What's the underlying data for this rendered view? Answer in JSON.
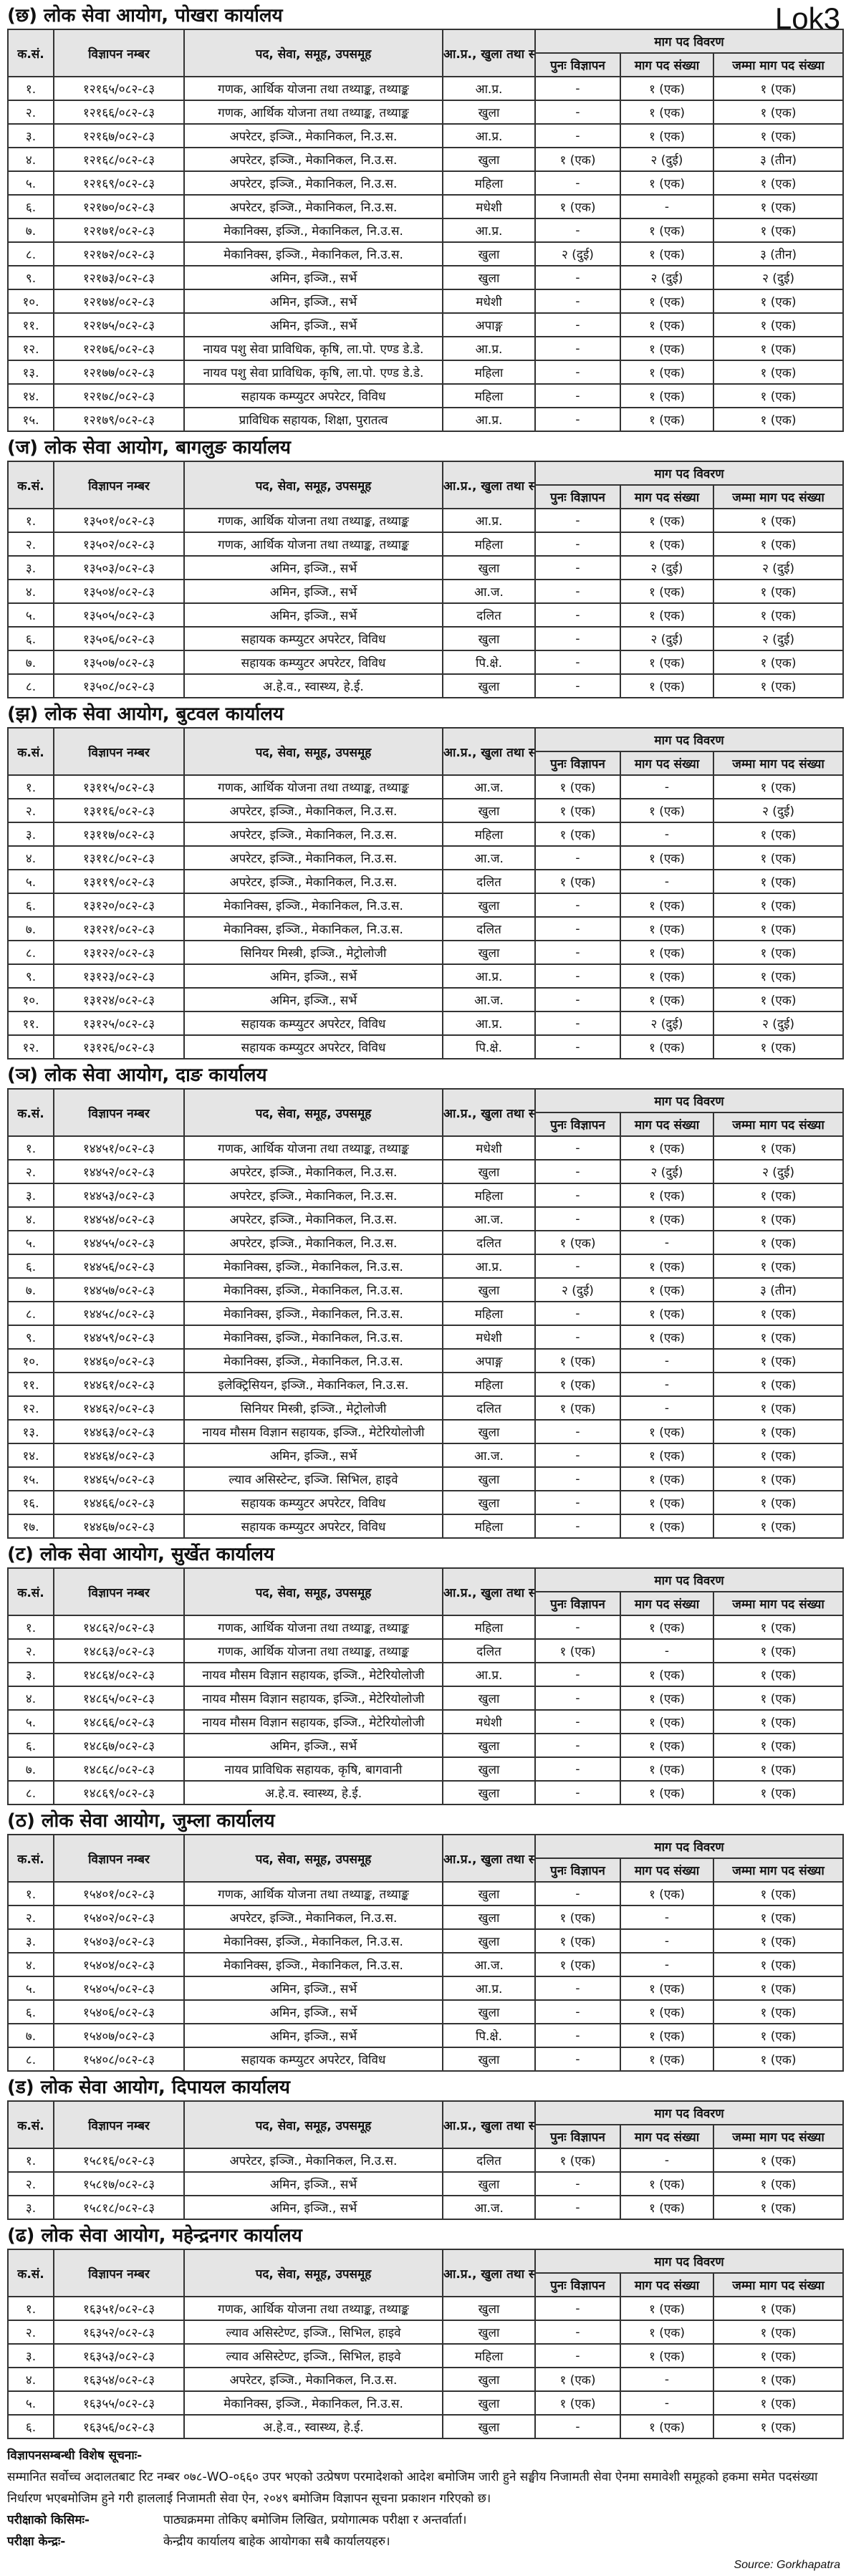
{
  "tag": "Lok3",
  "headers": {
    "sn": "क.सं.",
    "adv": "विज्ञापन नम्बर",
    "post": "पद, सेवा, समूह, उपसमूह",
    "group": "आ.प्र., खुला तथा समावेशी",
    "demand": "माग पद विवरण",
    "readv": "पुनः विज्ञापन",
    "count": "माग पद संख्या",
    "total": "जम्मा माग पद संख्या"
  },
  "sections": [
    {
      "title": "(छ) लोक सेवा आयोग, पोखरा कार्यालय",
      "rows": [
        [
          "१.",
          "१२१६५/०८२-८३",
          "गणक, आर्थिक योजना तथा तथ्याङ्क, तथ्याङ्क",
          "आ.प्र.",
          "-",
          "१ (एक)",
          "१ (एक)"
        ],
        [
          "२.",
          "१२१६६/०८२-८३",
          "गणक, आर्थिक योजना तथा तथ्याङ्क, तथ्याङ्क",
          "खुला",
          "-",
          "१ (एक)",
          "१ (एक)"
        ],
        [
          "३.",
          "१२१६७/०८२-८३",
          "अपरेटर, इञ्जि., मेकानिकल, नि.उ.स.",
          "आ.प्र.",
          "-",
          "१ (एक)",
          "१ (एक)"
        ],
        [
          "४.",
          "१२१६८/०८२-८३",
          "अपरेटर, इञ्जि., मेकानिकल, नि.उ.स.",
          "खुला",
          "१ (एक)",
          "२ (दुई)",
          "३ (तीन)"
        ],
        [
          "५.",
          "१२१६९/०८२-८३",
          "अपरेटर, इञ्जि., मेकानिकल, नि.उ.स.",
          "महिला",
          "-",
          "१ (एक)",
          "१ (एक)"
        ],
        [
          "६.",
          "१२१७०/०८२-८३",
          "अपरेटर, इञ्जि., मेकानिकल, नि.उ.स.",
          "मधेशी",
          "१ (एक)",
          "-",
          "१ (एक)"
        ],
        [
          "७.",
          "१२१७१/०८२-८३",
          "मेकानिक्स, इञ्जि., मेकानिकल, नि.उ.स.",
          "आ.प्र.",
          "-",
          "१ (एक)",
          "१ (एक)"
        ],
        [
          "८.",
          "१२१७२/०८२-८३",
          "मेकानिक्स, इञ्जि., मेकानिकल, नि.उ.स.",
          "खुला",
          "२ (दुई)",
          "१ (एक)",
          "३ (तीन)"
        ],
        [
          "९.",
          "१२१७३/०८२-८३",
          "अमिन, इञ्जि., सर्भे",
          "खुला",
          "-",
          "२ (दुई)",
          "२ (दुई)"
        ],
        [
          "१०.",
          "१२१७४/०८२-८३",
          "अमिन, इञ्जि., सर्भे",
          "मधेशी",
          "-",
          "१ (एक)",
          "१ (एक)"
        ],
        [
          "११.",
          "१२१७५/०८२-८३",
          "अमिन, इञ्जि., सर्भे",
          "अपाङ्ग",
          "-",
          "१ (एक)",
          "१ (एक)"
        ],
        [
          "१२.",
          "१२१७६/०८२-८३",
          "नायव पशु सेवा प्राविधिक, कृषि, ला.पो. एण्ड डे.डे.",
          "आ.प्र.",
          "-",
          "१ (एक)",
          "१ (एक)"
        ],
        [
          "१३.",
          "१२१७७/०८२-८३",
          "नायव पशु सेवा प्राविधिक, कृषि, ला.पो. एण्ड डे.डे.",
          "महिला",
          "-",
          "१ (एक)",
          "१ (एक)"
        ],
        [
          "१४.",
          "१२१७८/०८२-८३",
          "सहायक कम्प्युटर अपरेटर, विविध",
          "महिला",
          "-",
          "१ (एक)",
          "१ (एक)"
        ],
        [
          "१५.",
          "१२१७९/०८२-८३",
          "प्राविधिक सहायक, शिक्षा, पुरातत्व",
          "आ.प्र.",
          "-",
          "१ (एक)",
          "१ (एक)"
        ]
      ]
    },
    {
      "title": "(ज) लोक सेवा आयोग, बागलुङ कार्यालय",
      "rows": [
        [
          "१.",
          "१३५०१/०८२-८३",
          "गणक, आर्थिक योजना तथा तथ्याङ्क, तथ्याङ्क",
          "आ.प्र.",
          "-",
          "१ (एक)",
          "१ (एक)"
        ],
        [
          "२.",
          "१३५०२/०८२-८३",
          "गणक, आर्थिक योजना तथा तथ्याङ्क, तथ्याङ्क",
          "महिला",
          "-",
          "१ (एक)",
          "१ (एक)"
        ],
        [
          "३.",
          "१३५०३/०८२-८३",
          "अमिन, इञ्जि., सर्भे",
          "खुला",
          "-",
          "२ (दुई)",
          "२ (दुई)"
        ],
        [
          "४.",
          "१३५०४/०८२-८३",
          "अमिन, इञ्जि., सर्भे",
          "आ.ज.",
          "-",
          "१ (एक)",
          "१ (एक)"
        ],
        [
          "५.",
          "१३५०५/०८२-८३",
          "अमिन, इञ्जि., सर्भे",
          "दलित",
          "-",
          "१ (एक)",
          "१ (एक)"
        ],
        [
          "६.",
          "१३५०६/०८२-८३",
          "सहायक कम्प्युटर अपरेटर, विविध",
          "खुला",
          "-",
          "२ (दुई)",
          "२ (दुई)"
        ],
        [
          "७.",
          "१३५०७/०८२-८३",
          "सहायक कम्प्युटर अपरेटर, विविध",
          "पि.क्षे.",
          "-",
          "१ (एक)",
          "१ (एक)"
        ],
        [
          "८.",
          "१३५०८/०८२-८३",
          "अ.हे.व., स्वास्थ्य, हे.ई.",
          "खुला",
          "-",
          "१ (एक)",
          "१ (एक)"
        ]
      ]
    },
    {
      "title": "(झ) लोक सेवा आयोग, बुटवल कार्यालय",
      "rows": [
        [
          "१.",
          "१३११५/०८२-८३",
          "गणक, आर्थिक योजना तथा तथ्याङ्क, तथ्याङ्क",
          "आ.ज.",
          "१ (एक)",
          "-",
          "१ (एक)"
        ],
        [
          "२.",
          "१३११६/०८२-८३",
          "अपरेटर, इञ्जि., मेकानिकल, नि.उ.स.",
          "खुला",
          "१ (एक)",
          "१ (एक)",
          "२ (दुई)"
        ],
        [
          "३.",
          "१३११७/०८२-८३",
          "अपरेटर, इञ्जि., मेकानिकल, नि.उ.स.",
          "महिला",
          "१ (एक)",
          "-",
          "१ (एक)"
        ],
        [
          "४.",
          "१३११८/०८२-८३",
          "अपरेटर, इञ्जि., मेकानिकल, नि.उ.स.",
          "आ.ज.",
          "-",
          "१ (एक)",
          "१ (एक)"
        ],
        [
          "५.",
          "१३११९/०८२-८३",
          "अपरेटर, इञ्जि., मेकानिकल, नि.उ.स.",
          "दलित",
          "१ (एक)",
          "-",
          "१ (एक)"
        ],
        [
          "६.",
          "१३१२०/०८२-८३",
          "मेकानिक्स, इञ्जि., मेकानिकल, नि.उ.स.",
          "खुला",
          "-",
          "१ (एक)",
          "१ (एक)"
        ],
        [
          "७.",
          "१३१२१/०८२-८३",
          "मेकानिक्स, इञ्जि., मेकानिकल, नि.उ.स.",
          "दलित",
          "-",
          "१ (एक)",
          "१ (एक)"
        ],
        [
          "८.",
          "१३१२२/०८२-८३",
          "सिनियर मिस्त्री, इञ्जि., मेट्रोलोजी",
          "खुला",
          "-",
          "१ (एक)",
          "१ (एक)"
        ],
        [
          "९.",
          "१३१२३/०८२-८३",
          "अमिन, इञ्जि., सर्भे",
          "आ.प्र.",
          "-",
          "१ (एक)",
          "१ (एक)"
        ],
        [
          "१०.",
          "१३१२४/०८२-८३",
          "अमिन, इञ्जि., सर्भे",
          "आ.ज.",
          "-",
          "१ (एक)",
          "१ (एक)"
        ],
        [
          "११.",
          "१३१२५/०८२-८३",
          "सहायक कम्प्युटर अपरेटर, विविध",
          "आ.प्र.",
          "-",
          "२ (दुई)",
          "२ (दुई)"
        ],
        [
          "१२.",
          "१३१२६/०८२-८३",
          "सहायक कम्प्युटर अपरेटर, विविध",
          "पि.क्षे.",
          "-",
          "१ (एक)",
          "१ (एक)"
        ]
      ]
    },
    {
      "title": "(ञ) लोक सेवा आयोग, दाङ कार्यालय",
      "rows": [
        [
          "१.",
          "१४४५१/०८२-८३",
          "गणक, आर्थिक योजना तथा तथ्याङ्क, तथ्याङ्क",
          "मधेशी",
          "-",
          "१ (एक)",
          "१ (एक)"
        ],
        [
          "२.",
          "१४४५२/०८२-८३",
          "अपरेटर, इञ्जि., मेकानिकल, नि.उ.स.",
          "खुला",
          "-",
          "२ (दुई)",
          "२ (दुई)"
        ],
        [
          "३.",
          "१४४५३/०८२-८३",
          "अपरेटर, इञ्जि., मेकानिकल, नि.उ.स.",
          "महिला",
          "-",
          "१ (एक)",
          "१ (एक)"
        ],
        [
          "४.",
          "१४४५४/०८२-८३",
          "अपरेटर, इञ्जि., मेकानिकल, नि.उ.स.",
          "आ.ज.",
          "-",
          "१ (एक)",
          "१ (एक)"
        ],
        [
          "५.",
          "१४४५५/०८२-८३",
          "अपरेटर, इञ्जि., मेकानिकल, नि.उ.स.",
          "दलित",
          "१ (एक)",
          "-",
          "१ (एक)"
        ],
        [
          "६.",
          "१४४५६/०८२-८३",
          "मेकानिक्स, इञ्जि., मेकानिकल, नि.उ.स.",
          "आ.प्र.",
          "-",
          "१ (एक)",
          "१ (एक)"
        ],
        [
          "७.",
          "१४४५७/०८२-८३",
          "मेकानिक्स, इञ्जि., मेकानिकल, नि.उ.स.",
          "खुला",
          "२ (दुई)",
          "१ (एक)",
          "३ (तीन)"
        ],
        [
          "८.",
          "१४४५८/०८२-८३",
          "मेकानिक्स, इञ्जि., मेकानिकल, नि.उ.स.",
          "महिला",
          "-",
          "१ (एक)",
          "१ (एक)"
        ],
        [
          "९.",
          "१४४५९/०८२-८३",
          "मेकानिक्स, इञ्जि., मेकानिकल, नि.उ.स.",
          "मधेशी",
          "-",
          "१ (एक)",
          "१ (एक)"
        ],
        [
          "१०.",
          "१४४६०/०८२-८३",
          "मेकानिक्स, इञ्जि., मेकानिकल, नि.उ.स.",
          "अपाङ्ग",
          "१ (एक)",
          "-",
          "१ (एक)"
        ],
        [
          "११.",
          "१४४६१/०८२-८३",
          "इलेक्ट्रिसियन, इञ्जि., मेकानिकल, नि.उ.स.",
          "महिला",
          "१ (एक)",
          "-",
          "१ (एक)"
        ],
        [
          "१२.",
          "१४४६२/०८२-८३",
          "सिनियर मिस्त्री, इञ्जि., मेट्रोलोजी",
          "दलित",
          "१ (एक)",
          "-",
          "१ (एक)"
        ],
        [
          "१३.",
          "१४४६३/०८२-८३",
          "नायव मौसम विज्ञान सहायक, इञ्जि., मेटेरियोलोजी",
          "खुला",
          "-",
          "१ (एक)",
          "१ (एक)"
        ],
        [
          "१४.",
          "१४४६४/०८२-८३",
          "अमिन, इञ्जि., सर्भे",
          "आ.ज.",
          "-",
          "१ (एक)",
          "१ (एक)"
        ],
        [
          "१५.",
          "१४४६५/०८२-८३",
          "ल्याव असिस्टेन्ट, इञ्जि. सिभिल, हाइवे",
          "खुला",
          "-",
          "१ (एक)",
          "१ (एक)"
        ],
        [
          "१६.",
          "१४४६६/०८२-८३",
          "सहायक कम्प्युटर अपरेटर, विविध",
          "खुला",
          "-",
          "१ (एक)",
          "१ (एक)"
        ],
        [
          "१७.",
          "१४४६७/०८२-८३",
          "सहायक कम्प्युटर अपरेटर, विविध",
          "महिला",
          "-",
          "१ (एक)",
          "१ (एक)"
        ]
      ]
    },
    {
      "title": "(ट) लोक सेवा आयोग, सुर्खेत कार्यालय",
      "rows": [
        [
          "१.",
          "१४८६२/०८२-८३",
          "गणक, आर्थिक योजना तथा तथ्याङ्क, तथ्याङ्क",
          "महिला",
          "-",
          "१ (एक)",
          "१ (एक)"
        ],
        [
          "२.",
          "१४८६३/०८२-८३",
          "गणक, आर्थिक योजना तथा तथ्याङ्क, तथ्याङ्क",
          "दलित",
          "१ (एक)",
          "-",
          "१ (एक)"
        ],
        [
          "३.",
          "१४८६४/०८२-८३",
          "नायव मौसम विज्ञान सहायक, इञ्जि., मेटेरियोलोजी",
          "आ.प्र.",
          "-",
          "१ (एक)",
          "१ (एक)"
        ],
        [
          "४.",
          "१४८६५/०८२-८३",
          "नायव मौसम विज्ञान सहायक, इञ्जि., मेटेरियोलोजी",
          "खुला",
          "-",
          "१ (एक)",
          "१ (एक)"
        ],
        [
          "५.",
          "१४८६६/०८२-८३",
          "नायव मौसम विज्ञान सहायक, इञ्जि., मेटेरियोलोजी",
          "मधेशी",
          "-",
          "१ (एक)",
          "१ (एक)"
        ],
        [
          "६.",
          "१४८६७/०८२-८३",
          "अमिन, इञ्जि., सर्भे",
          "खुला",
          "-",
          "१ (एक)",
          "१ (एक)"
        ],
        [
          "७.",
          "१४८६८/०८२-८३",
          "नायव प्राविधिक सहायक, कृषि, बागवानी",
          "खुला",
          "-",
          "१ (एक)",
          "१ (एक)"
        ],
        [
          "८.",
          "१४८६९/०८२-८३",
          "अ.हे.व. स्वास्थ्य, हे.ई.",
          "खुला",
          "-",
          "१ (एक)",
          "१ (एक)"
        ]
      ]
    },
    {
      "title": "(ठ) लोक सेवा आयोग, जुम्ला कार्यालय",
      "rows": [
        [
          "१.",
          "१५४०१/०८२-८३",
          "गणक, आर्थिक योजना तथा तथ्याङ्क, तथ्याङ्क",
          "खुला",
          "-",
          "१ (एक)",
          "१ (एक)"
        ],
        [
          "२.",
          "१५४०२/०८२-८३",
          "अपरेटर, इञ्जि., मेकानिकल, नि.उ.स.",
          "खुला",
          "१ (एक)",
          "-",
          "१ (एक)"
        ],
        [
          "३.",
          "१५४०३/०८२-८३",
          "मेकानिक्स, इञ्जि., मेकानिकल, नि.उ.स.",
          "खुला",
          "१ (एक)",
          "-",
          "१ (एक)"
        ],
        [
          "४.",
          "१५४०४/०८२-८३",
          "मेकानिक्स, इञ्जि., मेकानिकल, नि.उ.स.",
          "आ.ज.",
          "१ (एक)",
          "-",
          "१ (एक)"
        ],
        [
          "५.",
          "१५४०५/०८२-८३",
          "अमिन, इञ्जि., सर्भे",
          "आ.प्र.",
          "-",
          "१ (एक)",
          "१ (एक)"
        ],
        [
          "६.",
          "१५४०६/०८२-८३",
          "अमिन, इञ्जि., सर्भे",
          "खुला",
          "-",
          "१ (एक)",
          "१ (एक)"
        ],
        [
          "७.",
          "१५४०७/०८२-८३",
          "अमिन, इञ्जि., सर्भे",
          "पि.क्षे.",
          "-",
          "१ (एक)",
          "१ (एक)"
        ],
        [
          "८.",
          "१५४०८/०८२-८३",
          "सहायक कम्प्युटर अपरेटर, विविध",
          "खुला",
          "-",
          "१ (एक)",
          "१ (एक)"
        ]
      ]
    },
    {
      "title": "(ड) लोक सेवा आयोग, दिपायल कार्यालय",
      "rows": [
        [
          "१.",
          "१५८१६/०८२-८३",
          "अपरेटर, इञ्जि., मेकानिकल, नि.उ.स.",
          "दलित",
          "१ (एक)",
          "-",
          "१ (एक)"
        ],
        [
          "२.",
          "१५८१७/०८२-८३",
          "अमिन, इञ्जि., सर्भे",
          "खुला",
          "-",
          "१ (एक)",
          "१ (एक)"
        ],
        [
          "३.",
          "१५८१८/०८२-८३",
          "अमिन, इञ्जि., सर्भे",
          "आ.ज.",
          "-",
          "१ (एक)",
          "१ (एक)"
        ]
      ]
    },
    {
      "title": "(ढ) लोक सेवा आयोग, महेन्द्रनगर कार्यालय",
      "rows": [
        [
          "१.",
          "१६३५१/०८२-८३",
          "गणक, आर्थिक योजना तथा तथ्याङ्क, तथ्याङ्क",
          "खुला",
          "-",
          "१ (एक)",
          "१ (एक)"
        ],
        [
          "२.",
          "१६३५२/०८२-८३",
          "ल्याव असिस्टेण्ट, इञ्जि., सिभिल, हाइवे",
          "खुला",
          "-",
          "१ (एक)",
          "१ (एक)"
        ],
        [
          "३.",
          "१६३५३/०८२-८३",
          "ल्याव असिस्टेण्ट, इञ्जि., सिभिल, हाइवे",
          "महिला",
          "-",
          "१ (एक)",
          "१ (एक)"
        ],
        [
          "४.",
          "१६३५४/०८२-८३",
          "अपरेटर, इञ्जि., मेकानिकल, नि.उ.स.",
          "खुला",
          "१ (एक)",
          "-",
          "१ (एक)"
        ],
        [
          "५.",
          "१६३५५/०८२-८३",
          "मेकानिक्स, इञ्जि., मेकानिकल, नि.उ.स.",
          "खुला",
          "१ (एक)",
          "-",
          "१ (एक)"
        ],
        [
          "६.",
          "१६३५६/०८२-८३",
          "अ.हे.व., स्वास्थ्य, हे.ई.",
          "खुला",
          "-",
          "१ (एक)",
          "१ (एक)"
        ]
      ]
    }
  ],
  "notes": {
    "heading": "विज्ञापनसम्बन्धी विशेष सूचनाः-",
    "body": "सम्मानित सर्वोच्च अदालतबाट रिट नम्बर ०७८-WO-०६६० उपर भएको उत्प्रेषण परमादेशको आदेश बमोजिम जारी हुने सङ्घीय निजामती सेवा ऐनमा समावेशी समूहको हकमा समेत पदसंख्या निर्धारण भएबमोजिम हुने गरी हाललाई निजामती सेवा ऐन, २०४९ बमोजिम विज्ञापन सूचना प्रकाशन गरिएको छ।",
    "exam_type_label": "परीक्षाको किसिमः-",
    "exam_type_value": "पाठ्यक्रममा तोकिए बमोजिम लिखित, प्रयोगात्मक परीक्षा र अन्तर्वार्ता।",
    "exam_center_label": "परीक्षा केन्द्रः-",
    "exam_center_value": "केन्द्रीय कार्यालय बाहेक आयोगका सबै कार्यालयहरु।"
  },
  "source": "Source: Gorkhapatra"
}
